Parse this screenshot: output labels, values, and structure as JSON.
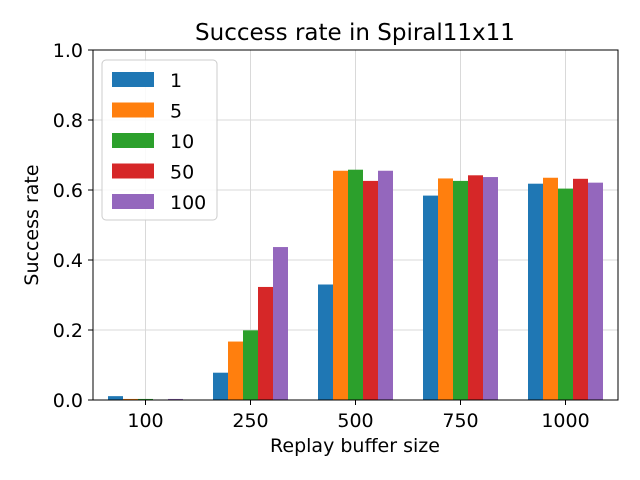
{
  "chart_data": {
    "type": "bar",
    "title": "Success rate in Spiral11x11",
    "xlabel": "Replay buffer size",
    "ylabel": "Success rate",
    "categories": [
      "100",
      "250",
      "500",
      "750",
      "1000"
    ],
    "ylim": [
      0,
      1.0
    ],
    "yticks": [
      "0.0",
      "0.2",
      "0.4",
      "0.6",
      "0.8",
      "1.0"
    ],
    "grid": true,
    "legend_position": "upper-left",
    "series": [
      {
        "name": "1",
        "color": "#1f77b4",
        "values": [
          0.011,
          0.078,
          0.33,
          0.584,
          0.618
        ]
      },
      {
        "name": "5",
        "color": "#ff7f0e",
        "values": [
          0.003,
          0.167,
          0.655,
          0.633,
          0.635
        ]
      },
      {
        "name": "10",
        "color": "#2ca02c",
        "values": [
          0.003,
          0.199,
          0.658,
          0.626,
          0.604
        ]
      },
      {
        "name": "50",
        "color": "#d62728",
        "values": [
          0.001,
          0.323,
          0.626,
          0.642,
          0.632
        ]
      },
      {
        "name": "100",
        "color": "#9467bd",
        "values": [
          0.003,
          0.437,
          0.655,
          0.637,
          0.621
        ]
      }
    ]
  }
}
